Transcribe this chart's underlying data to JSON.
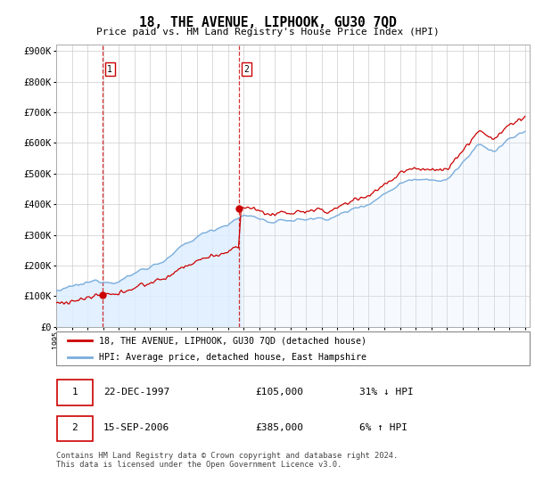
{
  "title": "18, THE AVENUE, LIPHOOK, GU30 7QD",
  "subtitle": "Price paid vs. HM Land Registry's House Price Index (HPI)",
  "ylabel_ticks": [
    "£0",
    "£100K",
    "£200K",
    "£300K",
    "£400K",
    "£500K",
    "£600K",
    "£700K",
    "£800K",
    "£900K"
  ],
  "ytick_values": [
    0,
    100000,
    200000,
    300000,
    400000,
    500000,
    600000,
    700000,
    800000,
    900000
  ],
  "ylim": [
    0,
    920000
  ],
  "sale1_date": "22-DEC-1997",
  "sale1_price": 105000,
  "sale1_label": "31% ↓ HPI",
  "sale1_x": 1997.97,
  "sale2_date": "15-SEP-2006",
  "sale2_price": 385000,
  "sale2_label": "6% ↑ HPI",
  "sale2_x": 2006.71,
  "line1_label": "18, THE AVENUE, LIPHOOK, GU30 7QD (detached house)",
  "line2_label": "HPI: Average price, detached house, East Hampshire",
  "footnote": "Contains HM Land Registry data © Crown copyright and database right 2024.\nThis data is licensed under the Open Government Licence v3.0.",
  "red_color": "#cc0000",
  "blue_color": "#7aaddc",
  "blue_fill": "#ddeeff",
  "background_color": "#ffffff",
  "grid_color": "#cccccc"
}
